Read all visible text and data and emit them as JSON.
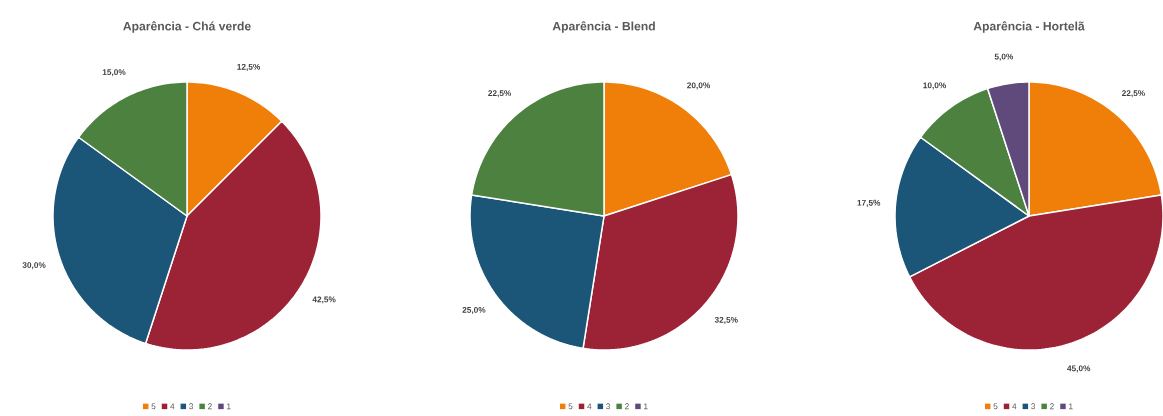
{
  "chart_data": [
    {
      "type": "pie",
      "title": "Aparência - Chá verde",
      "categories": [
        "5",
        "4",
        "3",
        "2",
        "1"
      ],
      "values": [
        12.5,
        42.5,
        30.0,
        15.0,
        0
      ],
      "colors": [
        "#f07f09",
        "#9b2335",
        "#1b5577",
        "#4c8140",
        "#5f4a7b"
      ],
      "value_labels": [
        "12,5%",
        "42,5%",
        "30,0%",
        "15,0%",
        null
      ],
      "legend": "bottom"
    },
    {
      "type": "pie",
      "title": "Aparência - Blend",
      "categories": [
        "5",
        "4",
        "3",
        "2",
        "1"
      ],
      "values": [
        20.0,
        32.5,
        25.0,
        22.5,
        0
      ],
      "colors": [
        "#f07f09",
        "#9b2335",
        "#1b5577",
        "#4c8140",
        "#5f4a7b"
      ],
      "value_labels": [
        "20,0%",
        "32,5%",
        "25,0%",
        "22,5%",
        null
      ],
      "legend": "bottom"
    },
    {
      "type": "pie",
      "title": "Aparência - Hortelã",
      "categories": [
        "5",
        "4",
        "3",
        "2",
        "1"
      ],
      "values": [
        22.5,
        45.0,
        17.5,
        10.0,
        5.0
      ],
      "colors": [
        "#f07f09",
        "#9b2335",
        "#1b5577",
        "#4c8140",
        "#5f4a7b"
      ],
      "value_labels": [
        "22,5%",
        "45,0%",
        "17,5%",
        "10,0%",
        "5,0%"
      ],
      "legend": "bottom"
    }
  ]
}
